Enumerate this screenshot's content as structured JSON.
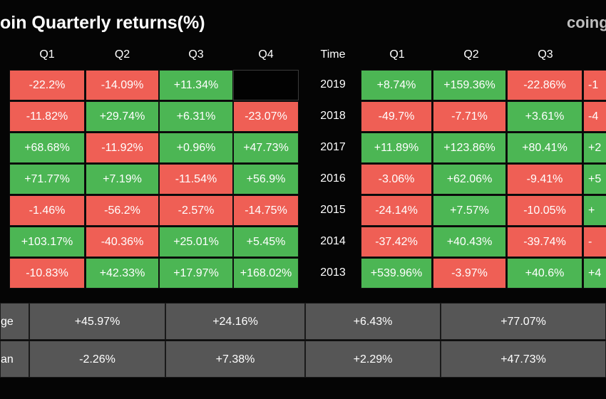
{
  "header": {
    "title": "oin Quarterly returns(%)",
    "logo_text": "coing"
  },
  "chart_data": {
    "type": "table",
    "colors": {
      "positive": "#4cb654",
      "negative": "#ef5f55",
      "summary": "#565656"
    },
    "left_table": {
      "columns": [
        "Q1",
        "Q2",
        "Q3",
        "Q4"
      ],
      "rows": [
        [
          "-22.2%",
          "-14.09%",
          "+11.34%",
          ""
        ],
        [
          "-11.82%",
          "+29.74%",
          "+6.31%",
          "-23.07%"
        ],
        [
          "+68.68%",
          "-11.92%",
          "+0.96%",
          "+47.73%"
        ],
        [
          "+71.77%",
          "+7.19%",
          "-11.54%",
          "+56.9%"
        ],
        [
          "-1.46%",
          "-56.2%",
          "-2.57%",
          "-14.75%"
        ],
        [
          "+103.17%",
          "-40.36%",
          "+25.01%",
          "+5.45%"
        ],
        [
          "-10.83%",
          "+42.33%",
          "+17.97%",
          "+168.02%"
        ]
      ]
    },
    "right_table": {
      "columns": [
        "Time",
        "Q1",
        "Q2",
        "Q3"
      ],
      "rows": [
        {
          "time": "2019",
          "values": [
            "+8.74%",
            "+159.36%",
            "-22.86%",
            "-1"
          ]
        },
        {
          "time": "2018",
          "values": [
            "-49.7%",
            "-7.71%",
            "+3.61%",
            "-4"
          ]
        },
        {
          "time": "2017",
          "values": [
            "+11.89%",
            "+123.86%",
            "+80.41%",
            "+2"
          ]
        },
        {
          "time": "2016",
          "values": [
            "-3.06%",
            "+62.06%",
            "-9.41%",
            "+5"
          ]
        },
        {
          "time": "2015",
          "values": [
            "-24.14%",
            "+7.57%",
            "-10.05%",
            "+"
          ]
        },
        {
          "time": "2014",
          "values": [
            "-37.42%",
            "+40.43%",
            "-39.74%",
            "-"
          ]
        },
        {
          "time": "2013",
          "values": [
            "+539.96%",
            "-3.97%",
            "+40.6%",
            "+4"
          ]
        }
      ]
    },
    "summary": [
      {
        "label": "ge",
        "values": [
          "+45.97%",
          "+24.16%",
          "+6.43%",
          "+77.07%"
        ]
      },
      {
        "label": "an",
        "values": [
          "-2.26%",
          "+7.38%",
          "+2.29%",
          "+47.73%"
        ]
      }
    ]
  }
}
